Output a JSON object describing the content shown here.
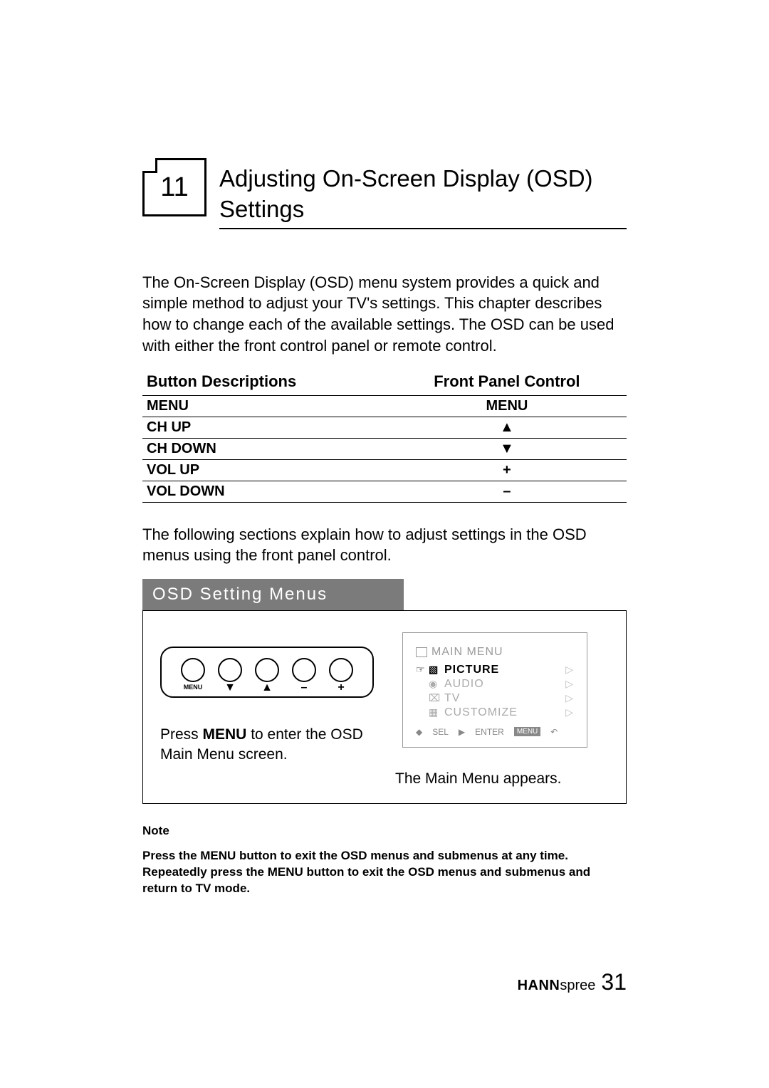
{
  "chapter": {
    "number": "11",
    "title": "Adjusting On-Screen Display (OSD) Settings"
  },
  "intro": "The On-Screen Display (OSD) menu system provides a quick and simple method to adjust your TV's settings. This chapter describes how to change each of the available settings. The OSD can be used with either the front control panel or remote control.",
  "table": {
    "headers": [
      "Button Descriptions",
      "Front Panel Control"
    ],
    "rows": [
      [
        "MENU",
        "MENU"
      ],
      [
        "CH UP",
        "▲"
      ],
      [
        "CH DOWN",
        "▼"
      ],
      [
        "VOL UP",
        "+"
      ],
      [
        "VOL DOWN",
        "–"
      ]
    ]
  },
  "para2": "The following sections explain how to adjust settings in the OSD menus using the front panel control.",
  "section_bar": "OSD Setting Menus",
  "controls": {
    "buttons": [
      {
        "label": "MENU",
        "sym": ""
      },
      {
        "label": "",
        "sym": "▼"
      },
      {
        "label": "",
        "sym": "▲"
      },
      {
        "label": "",
        "sym": "–"
      },
      {
        "label": "",
        "sym": "+"
      }
    ]
  },
  "menu_box": {
    "title": "MAIN  MENU",
    "items": [
      {
        "label": "PICTURE",
        "selected": true
      },
      {
        "label": "AUDIO",
        "selected": false
      },
      {
        "label": "TV",
        "selected": false
      },
      {
        "label": "CUSTOMIZE",
        "selected": false
      }
    ],
    "footer": {
      "sel": "SEL",
      "enter": "ENTER",
      "menu": "MENU"
    }
  },
  "left_caption_a": "Press ",
  "left_caption_b": "MENU",
  "left_caption_c": " to enter the OSD Main Menu screen.",
  "right_caption": "The Main Menu appears.",
  "note": {
    "label": "Note",
    "text": "Press the MENU button to exit the OSD menus and submenus at any time. Repeatedly press the MENU button to exit the OSD menus and submenus and return to TV mode."
  },
  "footer": {
    "brand_bold": "HANN",
    "brand_light": "spree",
    "page": "31"
  },
  "colors": {
    "section_bg": "#7b7b7b",
    "dim_text": "#aaaaaa"
  }
}
